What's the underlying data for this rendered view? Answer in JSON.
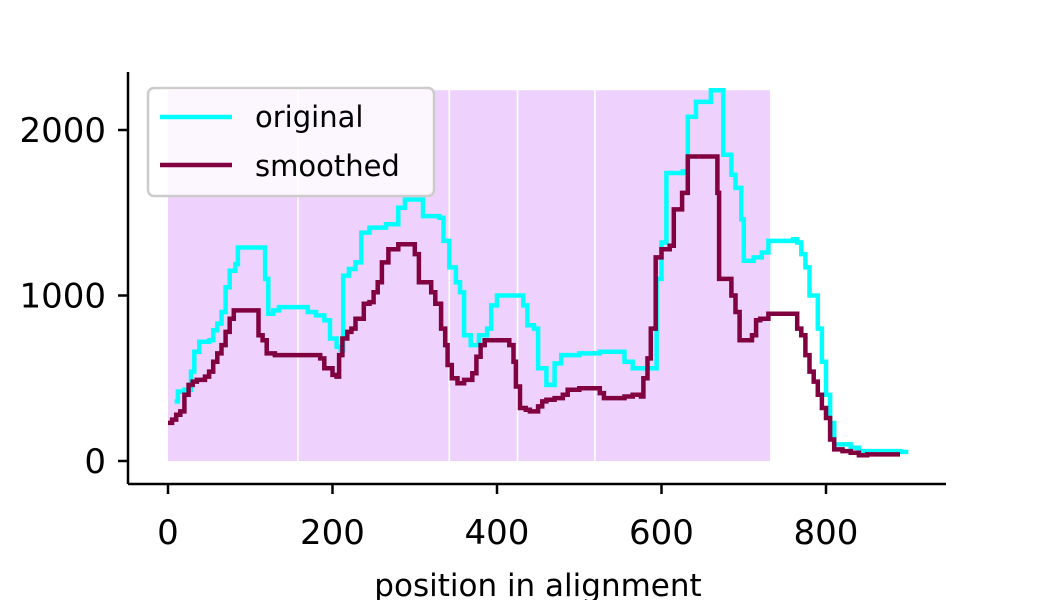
{
  "chart_data": {
    "type": "line",
    "title": "",
    "xlabel": "position in alignment",
    "ylabel": "",
    "xlim": [
      -40,
      940
    ],
    "ylim": [
      -130,
      2350
    ],
    "xticks": [
      0,
      200,
      400,
      600,
      800
    ],
    "xtick_labels": [
      "0",
      "200",
      "400",
      "600",
      "800"
    ],
    "yticks": [
      0,
      1000,
      2000
    ],
    "ytick_labels": [
      "0",
      "1000",
      "2000"
    ],
    "grid": false,
    "legend": {
      "position": "top-left",
      "entries": [
        "original",
        "smoothed"
      ]
    },
    "shaded_regions": {
      "color": "#eed2fd",
      "ymax": 2240,
      "spans": [
        [
          0,
          157
        ],
        [
          159,
          341
        ],
        [
          343,
          424
        ],
        [
          426,
          518
        ],
        [
          520,
          732
        ]
      ]
    },
    "series": [
      {
        "name": "original",
        "color": "#00ffff",
        "points": [
          [
            8,
            360
          ],
          [
            12,
            420
          ],
          [
            20,
            430
          ],
          [
            28,
            540
          ],
          [
            32,
            660
          ],
          [
            38,
            720
          ],
          [
            50,
            730
          ],
          [
            55,
            790
          ],
          [
            60,
            830
          ],
          [
            65,
            900
          ],
          [
            70,
            1050
          ],
          [
            75,
            1150
          ],
          [
            82,
            1190
          ],
          [
            85,
            1290
          ],
          [
            95,
            1290
          ],
          [
            110,
            1290
          ],
          [
            118,
            1100
          ],
          [
            122,
            890
          ],
          [
            128,
            910
          ],
          [
            135,
            930
          ],
          [
            160,
            930
          ],
          [
            170,
            900
          ],
          [
            180,
            880
          ],
          [
            190,
            850
          ],
          [
            197,
            740
          ],
          [
            205,
            690
          ],
          [
            210,
            670
          ],
          [
            213,
            1120
          ],
          [
            220,
            1160
          ],
          [
            228,
            1200
          ],
          [
            235,
            1380
          ],
          [
            245,
            1410
          ],
          [
            265,
            1430
          ],
          [
            280,
            1530
          ],
          [
            288,
            1580
          ],
          [
            305,
            1580
          ],
          [
            310,
            1480
          ],
          [
            330,
            1470
          ],
          [
            335,
            1330
          ],
          [
            342,
            1170
          ],
          [
            350,
            1080
          ],
          [
            355,
            1020
          ],
          [
            360,
            760
          ],
          [
            368,
            700
          ],
          [
            378,
            760
          ],
          [
            388,
            800
          ],
          [
            393,
            940
          ],
          [
            400,
            1000
          ],
          [
            428,
            1000
          ],
          [
            432,
            940
          ],
          [
            437,
            820
          ],
          [
            445,
            800
          ],
          [
            450,
            560
          ],
          [
            460,
            460
          ],
          [
            470,
            590
          ],
          [
            478,
            640
          ],
          [
            500,
            650
          ],
          [
            525,
            660
          ],
          [
            548,
            660
          ],
          [
            555,
            600
          ],
          [
            565,
            560
          ],
          [
            590,
            560
          ],
          [
            594,
            1100
          ],
          [
            600,
            1320
          ],
          [
            606,
            1740
          ],
          [
            614,
            1740
          ],
          [
            626,
            1750
          ],
          [
            632,
            2080
          ],
          [
            642,
            2170
          ],
          [
            660,
            2240
          ],
          [
            668,
            2240
          ],
          [
            675,
            1850
          ],
          [
            685,
            1730
          ],
          [
            690,
            1650
          ],
          [
            697,
            1460
          ],
          [
            700,
            1210
          ],
          [
            712,
            1230
          ],
          [
            722,
            1260
          ],
          [
            730,
            1330
          ],
          [
            760,
            1340
          ],
          [
            765,
            1320
          ],
          [
            770,
            1250
          ],
          [
            775,
            1170
          ],
          [
            780,
            1000
          ],
          [
            790,
            800
          ],
          [
            795,
            600
          ],
          [
            800,
            400
          ],
          [
            805,
            230
          ],
          [
            810,
            100
          ],
          [
            830,
            80
          ],
          [
            840,
            60
          ],
          [
            860,
            60
          ],
          [
            880,
            60
          ],
          [
            890,
            55
          ],
          [
            900,
            55
          ]
        ]
      },
      {
        "name": "smoothed",
        "color": "#800040",
        "points": [
          [
            0,
            230
          ],
          [
            5,
            250
          ],
          [
            10,
            280
          ],
          [
            15,
            300
          ],
          [
            20,
            400
          ],
          [
            25,
            460
          ],
          [
            30,
            480
          ],
          [
            35,
            490
          ],
          [
            40,
            490
          ],
          [
            45,
            510
          ],
          [
            50,
            540
          ],
          [
            55,
            600
          ],
          [
            60,
            650
          ],
          [
            65,
            700
          ],
          [
            70,
            780
          ],
          [
            75,
            860
          ],
          [
            80,
            910
          ],
          [
            95,
            910
          ],
          [
            105,
            910
          ],
          [
            110,
            760
          ],
          [
            115,
            730
          ],
          [
            120,
            650
          ],
          [
            130,
            640
          ],
          [
            150,
            640
          ],
          [
            160,
            640
          ],
          [
            170,
            640
          ],
          [
            185,
            620
          ],
          [
            190,
            560
          ],
          [
            200,
            520
          ],
          [
            205,
            510
          ],
          [
            208,
            640
          ],
          [
            212,
            740
          ],
          [
            218,
            780
          ],
          [
            223,
            800
          ],
          [
            228,
            860
          ],
          [
            238,
            950
          ],
          [
            245,
            960
          ],
          [
            250,
            1020
          ],
          [
            255,
            1080
          ],
          [
            260,
            1200
          ],
          [
            268,
            1280
          ],
          [
            280,
            1310
          ],
          [
            295,
            1310
          ],
          [
            300,
            1250
          ],
          [
            305,
            1080
          ],
          [
            315,
            1080
          ],
          [
            320,
            1020
          ],
          [
            325,
            950
          ],
          [
            332,
            800
          ],
          [
            337,
            700
          ],
          [
            340,
            580
          ],
          [
            345,
            500
          ],
          [
            352,
            470
          ],
          [
            360,
            490
          ],
          [
            370,
            530
          ],
          [
            375,
            630
          ],
          [
            380,
            700
          ],
          [
            385,
            730
          ],
          [
            410,
            730
          ],
          [
            415,
            700
          ],
          [
            420,
            600
          ],
          [
            423,
            450
          ],
          [
            428,
            320
          ],
          [
            435,
            310
          ],
          [
            440,
            300
          ],
          [
            450,
            330
          ],
          [
            455,
            360
          ],
          [
            460,
            370
          ],
          [
            470,
            380
          ],
          [
            480,
            400
          ],
          [
            486,
            430
          ],
          [
            500,
            440
          ],
          [
            510,
            440
          ],
          [
            520,
            440
          ],
          [
            525,
            410
          ],
          [
            530,
            380
          ],
          [
            555,
            390
          ],
          [
            565,
            400
          ],
          [
            575,
            390
          ],
          [
            578,
            500
          ],
          [
            583,
            620
          ],
          [
            587,
            800
          ],
          [
            593,
            1230
          ],
          [
            600,
            1280
          ],
          [
            610,
            1300
          ],
          [
            615,
            1520
          ],
          [
            620,
            1520
          ],
          [
            625,
            1620
          ],
          [
            632,
            1840
          ],
          [
            655,
            1840
          ],
          [
            665,
            1840
          ],
          [
            668,
            1620
          ],
          [
            670,
            1100
          ],
          [
            678,
            1100
          ],
          [
            685,
            1000
          ],
          [
            690,
            900
          ],
          [
            695,
            730
          ],
          [
            700,
            730
          ],
          [
            710,
            760
          ],
          [
            715,
            850
          ],
          [
            720,
            860
          ],
          [
            730,
            890
          ],
          [
            760,
            890
          ],
          [
            765,
            800
          ],
          [
            770,
            760
          ],
          [
            775,
            640
          ],
          [
            780,
            540
          ],
          [
            785,
            480
          ],
          [
            790,
            400
          ],
          [
            795,
            320
          ],
          [
            800,
            260
          ],
          [
            805,
            130
          ],
          [
            810,
            70
          ],
          [
            820,
            60
          ],
          [
            830,
            50
          ],
          [
            840,
            35
          ],
          [
            850,
            40
          ],
          [
            870,
            40
          ],
          [
            890,
            40
          ]
        ]
      }
    ]
  }
}
